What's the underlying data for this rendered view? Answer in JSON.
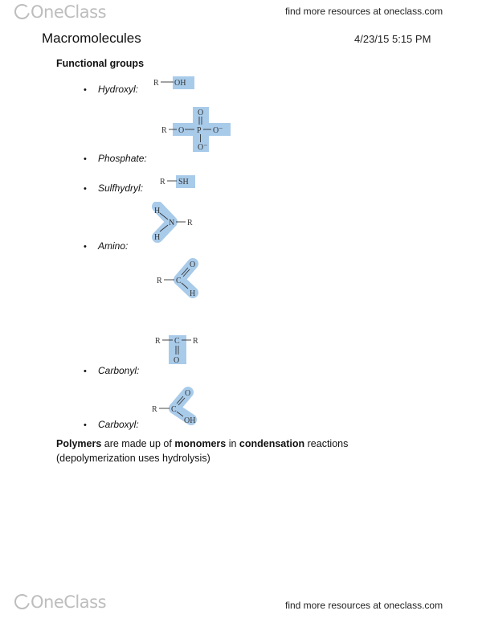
{
  "header": {
    "logo_one": "One",
    "logo_class": "Class",
    "link": "find more resources at oneclass.com"
  },
  "note": {
    "title": "Macromolecules",
    "date": "4/23/15 5:15 PM",
    "section_heading": "Functional groups",
    "items": [
      {
        "label": "Hydroxyl:"
      },
      {
        "label": "Phosphate:"
      },
      {
        "label": "Sulfhydryl:"
      },
      {
        "label": "Amino:"
      },
      {
        "label": "Carbonyl:"
      },
      {
        "label": "Carboxyl:"
      }
    ],
    "bullet": "•",
    "para": {
      "polymers": "Polymers",
      "t1": " are made up of ",
      "monomers": "monomers",
      "t2": " in ",
      "condensation": "condensation",
      "t3": " reactions",
      "line2": "(depolymerization uses hydrolysis)"
    },
    "structures": {
      "hydroxyl": {
        "r": "R",
        "group": "OH"
      },
      "phosphate": {
        "r": "R",
        "o1": "O",
        "p": "P",
        "o_minus": "O⁻",
        "o_top": "O",
        "o_bottom": "O⁻"
      },
      "sulfhydryl": {
        "r": "R",
        "group": "SH"
      },
      "amino": {
        "h1": "H",
        "n": "N",
        "r": "R",
        "h2": "H"
      },
      "aldehyde": {
        "r": "R",
        "c": "C",
        "o": "O",
        "h": "H"
      },
      "ketone": {
        "r1": "R",
        "c": "C",
        "r2": "R",
        "o": "O"
      },
      "carboxyl": {
        "r": "R",
        "c": "C",
        "o": "O",
        "oh": "OH"
      }
    },
    "highlight_color": "#a9cbea"
  },
  "footer": {
    "logo_one": "One",
    "logo_class": "Class",
    "link": "find more resources at oneclass.com"
  }
}
